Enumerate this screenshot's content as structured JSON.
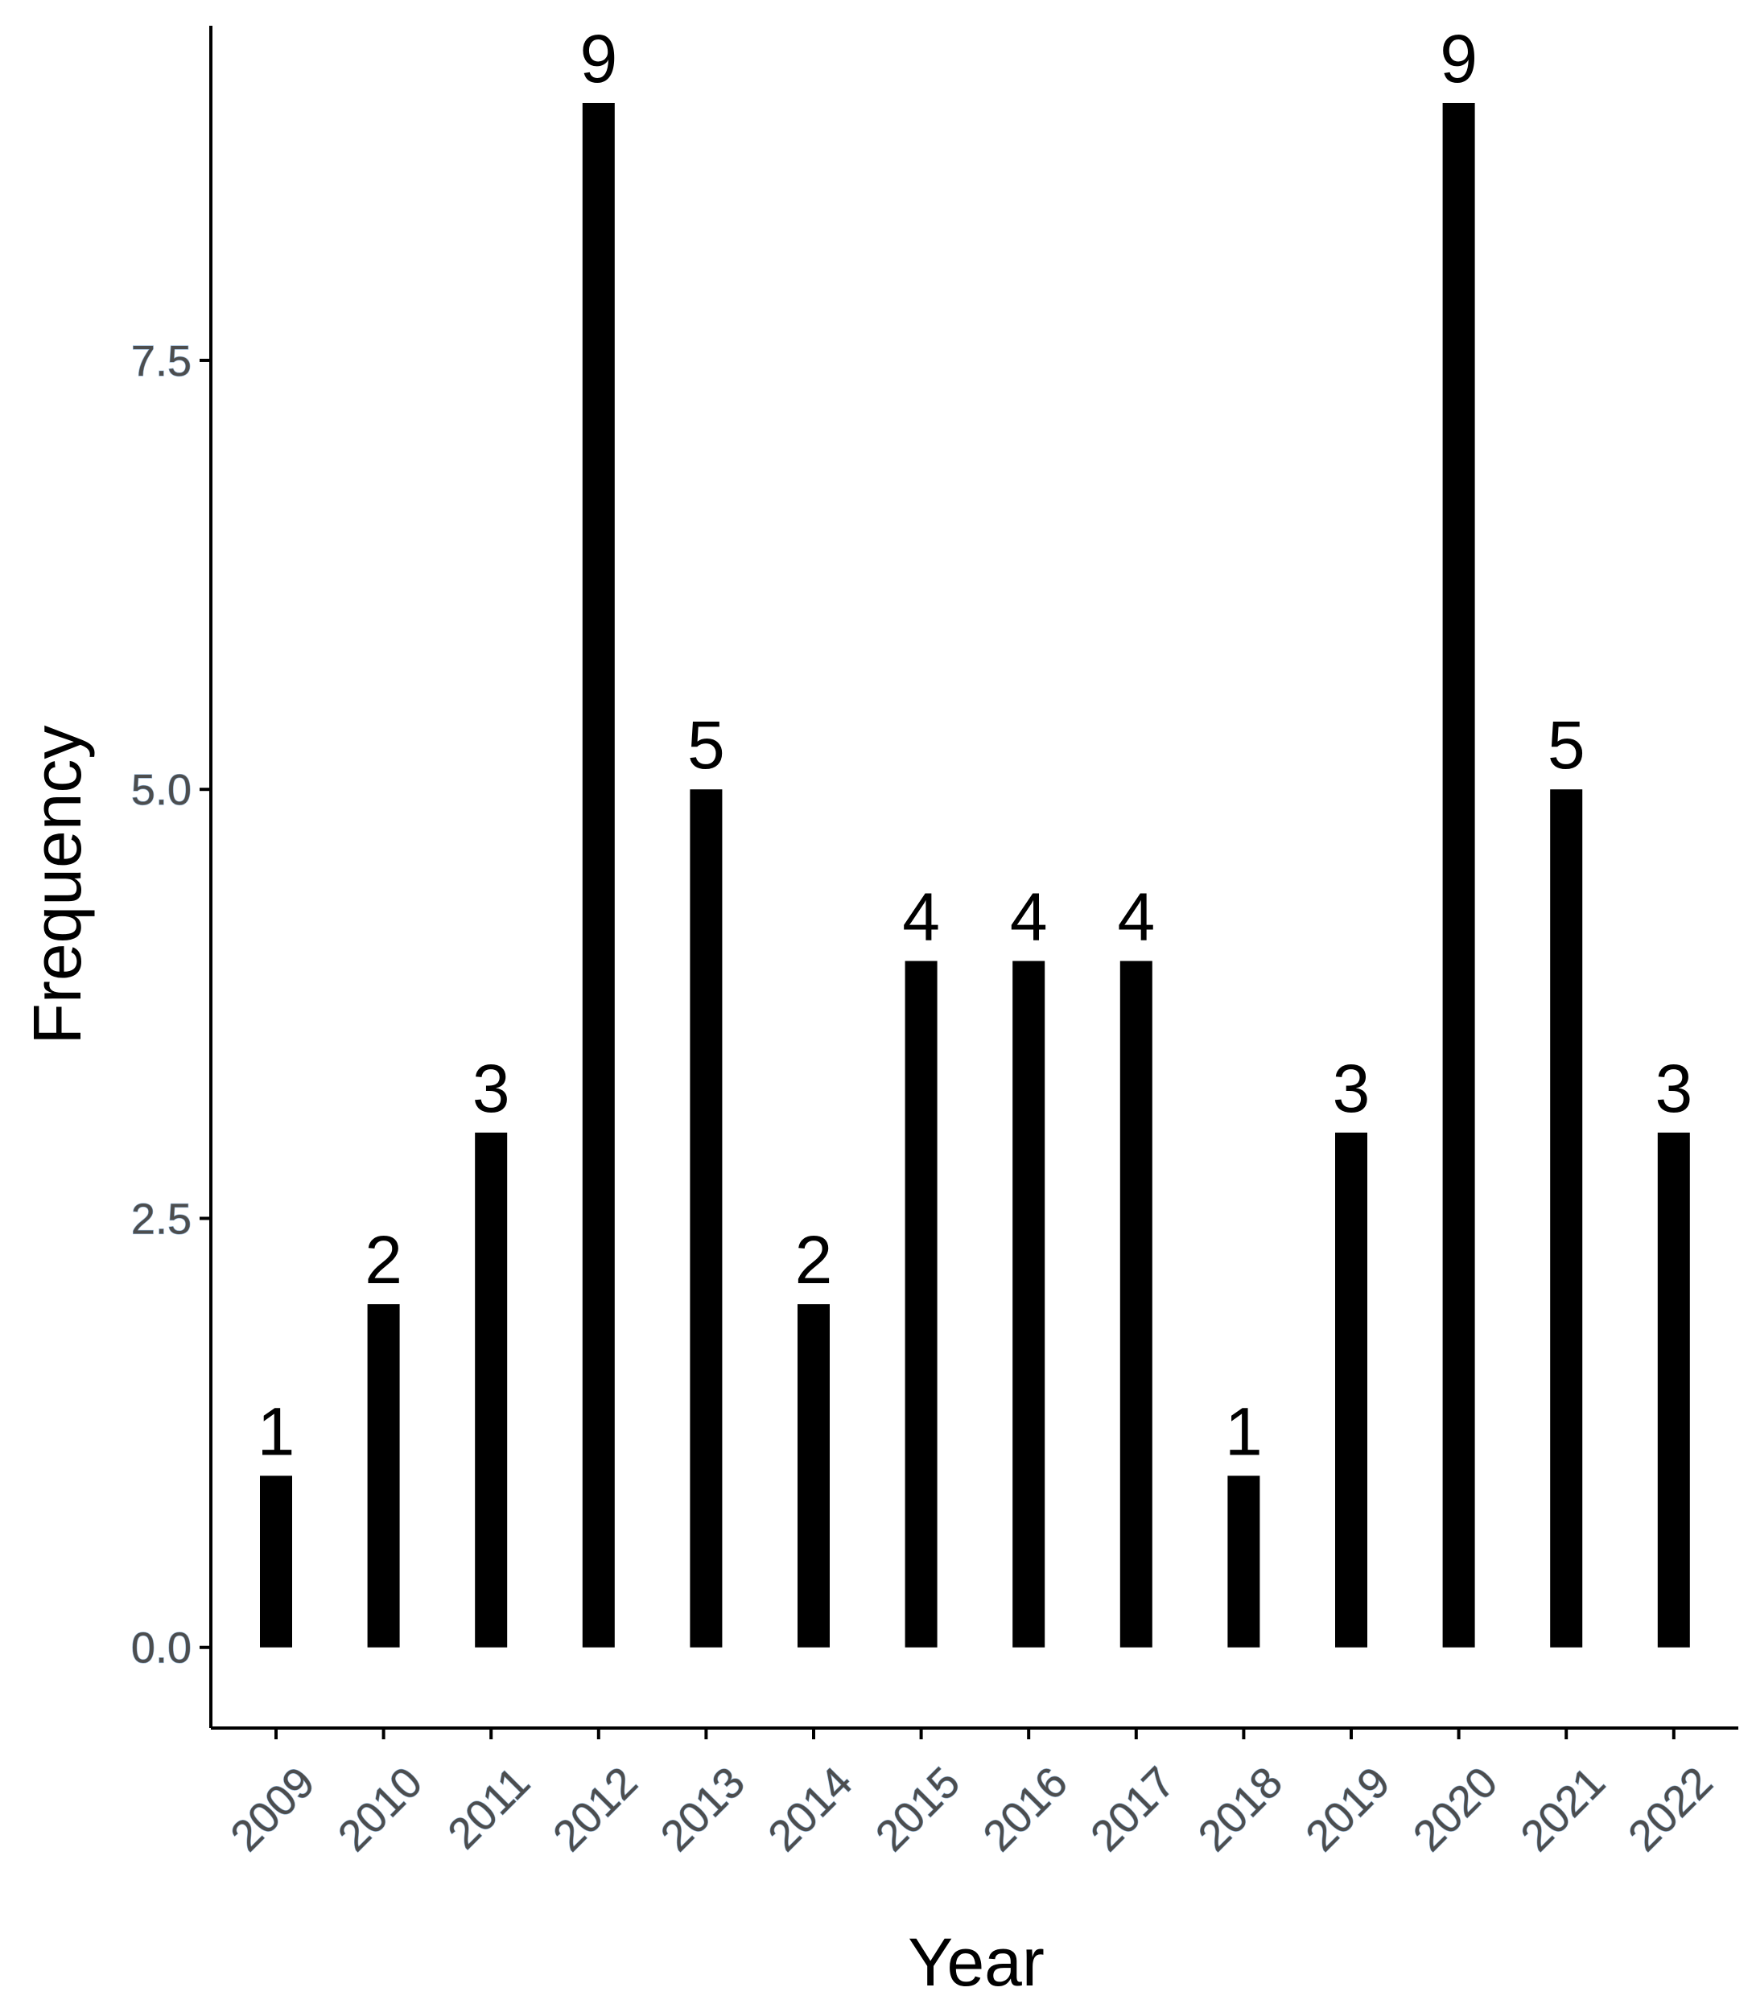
{
  "chart_data": {
    "type": "bar",
    "title": "",
    "xlabel": "Year",
    "ylabel": "Frequency",
    "categories": [
      "2009",
      "2010",
      "2011",
      "2012",
      "2013",
      "2014",
      "2015",
      "2016",
      "2017",
      "2018",
      "2019",
      "2020",
      "2021",
      "2022"
    ],
    "values": [
      1,
      2,
      3,
      9,
      5,
      2,
      4,
      4,
      4,
      1,
      3,
      9,
      5,
      3
    ],
    "data_labels": [
      "1",
      "2",
      "3",
      "9",
      "5",
      "2",
      "4",
      "4",
      "4",
      "1",
      "3",
      "9",
      "5",
      "3"
    ],
    "y_ticks": [
      0,
      2.5,
      5,
      7.5
    ],
    "y_tick_labels": [
      "0.0",
      "2.5",
      "5.0",
      "7.5"
    ],
    "ylim": [
      -0.47,
      9.45
    ],
    "grid": false,
    "legend": "none",
    "colors": {
      "bar": "#000000",
      "axis": "#000000",
      "tick_label": "#4d4d4d",
      "tick_label_outline": "#8fb4d8",
      "text": "#000000"
    }
  }
}
